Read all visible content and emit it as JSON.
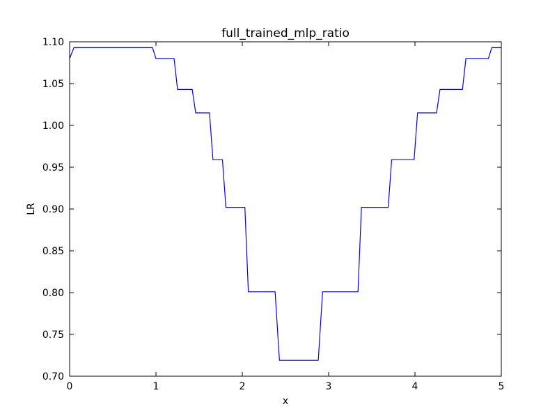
{
  "chart_data": {
    "type": "line",
    "title": "full_trained_mlp_ratio",
    "xlabel": "x",
    "ylabel": "LR",
    "xlim": [
      0,
      5
    ],
    "ylim": [
      0.7,
      1.1
    ],
    "grid": false,
    "x_ticks": [
      "0",
      "1",
      "2",
      "3",
      "4",
      "5"
    ],
    "x_tick_values": [
      0,
      1,
      2,
      3,
      4,
      5
    ],
    "y_ticks": [
      "0.70",
      "0.75",
      "0.80",
      "0.85",
      "0.90",
      "0.95",
      "1.00",
      "1.05",
      "1.10"
    ],
    "y_tick_values": [
      0.7,
      0.75,
      0.8,
      0.85,
      0.9,
      0.95,
      1.0,
      1.05,
      1.1
    ],
    "series": [
      {
        "color": "#0000ff",
        "x": [
          0.0,
          0.05,
          0.96,
          1.0,
          1.21,
          1.25,
          1.42,
          1.46,
          1.62,
          1.66,
          1.77,
          1.81,
          2.03,
          2.07,
          2.38,
          2.43,
          2.88,
          2.93,
          3.34,
          3.38,
          3.69,
          3.73,
          3.99,
          4.03,
          4.25,
          4.29,
          4.55,
          4.59,
          4.85,
          4.89,
          5.0
        ],
        "y": [
          1.08,
          1.093,
          1.093,
          1.08,
          1.08,
          1.043,
          1.043,
          1.015,
          1.015,
          0.959,
          0.959,
          0.902,
          0.902,
          0.801,
          0.801,
          0.719,
          0.719,
          0.801,
          0.801,
          0.902,
          0.902,
          0.959,
          0.959,
          1.015,
          1.015,
          1.043,
          1.043,
          1.08,
          1.08,
          1.093,
          1.093
        ]
      }
    ]
  }
}
